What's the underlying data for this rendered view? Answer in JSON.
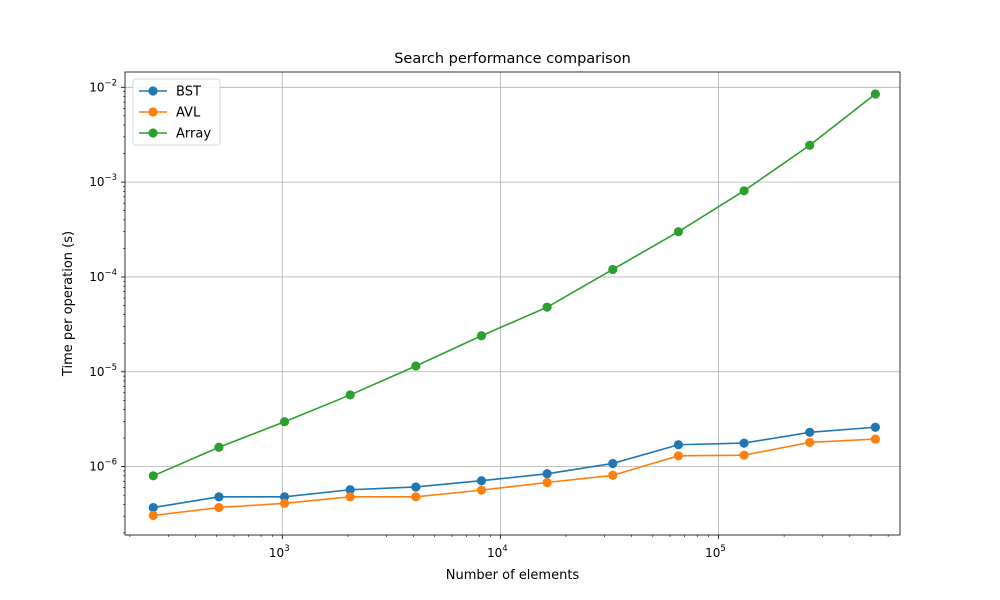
{
  "chart_data": {
    "type": "line",
    "title": "Search performance comparison",
    "xlabel": "Number of elements",
    "ylabel": "Time per operation (s)",
    "xscale": "log",
    "yscale": "log",
    "xlim": [
      190,
      680000
    ],
    "ylim": [
      1.9e-07,
      0.0145
    ],
    "grid": true,
    "legend_position": "top-left",
    "x": [
      256,
      512,
      1024,
      2048,
      4096,
      8192,
      16384,
      32768,
      65536,
      131072,
      262144,
      524288
    ],
    "x_ticks": [
      {
        "value": 1000,
        "base": "10",
        "exp": "3"
      },
      {
        "value": 10000,
        "base": "10",
        "exp": "4"
      },
      {
        "value": 100000,
        "base": "10",
        "exp": "5"
      }
    ],
    "y_ticks": [
      {
        "value": 1e-06,
        "base": "10",
        "exp": "−6"
      },
      {
        "value": 1e-05,
        "base": "10",
        "exp": "−5"
      },
      {
        "value": 0.0001,
        "base": "10",
        "exp": "−4"
      },
      {
        "value": 0.001,
        "base": "10",
        "exp": "−3"
      },
      {
        "value": 0.01,
        "base": "10",
        "exp": "−2"
      }
    ],
    "series": [
      {
        "name": "BST",
        "color": "#1f77b4",
        "values": [
          3.7e-07,
          4.8e-07,
          4.8e-07,
          5.7e-07,
          6.1e-07,
          7.1e-07,
          8.4e-07,
          1.08e-06,
          1.7e-06,
          1.77e-06,
          2.3e-06,
          2.6e-06
        ]
      },
      {
        "name": "AVL",
        "color": "#ff7f0e",
        "values": [
          3.05e-07,
          3.7e-07,
          4.1e-07,
          4.8e-07,
          4.8e-07,
          5.65e-07,
          6.8e-07,
          8.1e-07,
          1.3e-06,
          1.32e-06,
          1.8e-06,
          1.95e-06
        ]
      },
      {
        "name": "Array",
        "color": "#2ca02c",
        "values": [
          8e-07,
          1.6e-06,
          2.97e-06,
          5.7e-06,
          1.15e-05,
          2.4e-05,
          4.8e-05,
          0.00012,
          0.0003,
          0.00081,
          0.00245,
          0.0085
        ]
      }
    ]
  }
}
